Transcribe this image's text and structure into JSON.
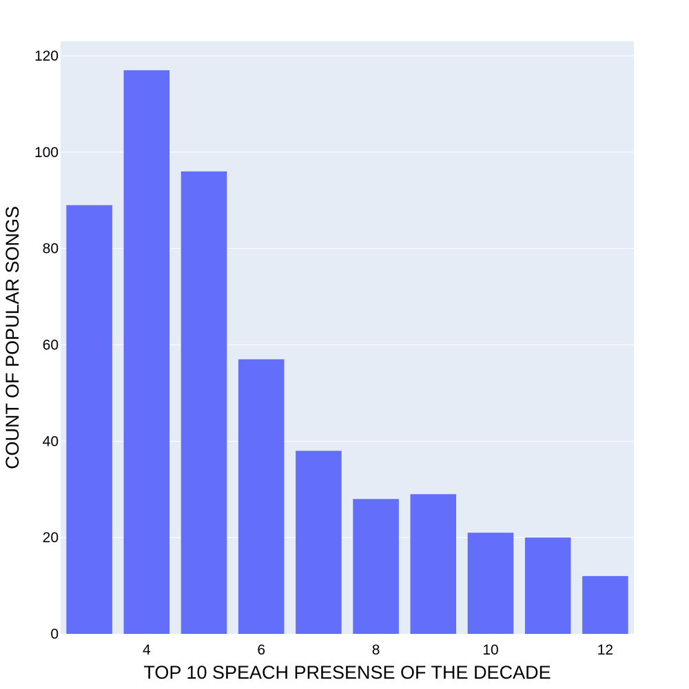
{
  "chart_data": {
    "type": "bar",
    "x": [
      3,
      4,
      5,
      6,
      7,
      8,
      9,
      10,
      11,
      12
    ],
    "values": [
      89,
      117,
      96,
      57,
      38,
      28,
      29,
      21,
      20,
      12
    ],
    "xlabel": "TOP 10 SPEACH PRESENSE OF THE DECADE",
    "ylabel": "COUNT OF POPULAR SONGS",
    "xlim": [
      2.5,
      12.5
    ],
    "ylim": [
      0,
      123
    ],
    "x_ticks": [
      4,
      6,
      8,
      10,
      12
    ],
    "y_ticks": [
      0,
      20,
      40,
      60,
      80,
      100,
      120
    ],
    "grid": true,
    "legend": "none",
    "colors": {
      "bar": "#636efa",
      "plot_background": "#e5ecf6",
      "grid": "#ffffff",
      "page_background": "#ffffff"
    }
  }
}
